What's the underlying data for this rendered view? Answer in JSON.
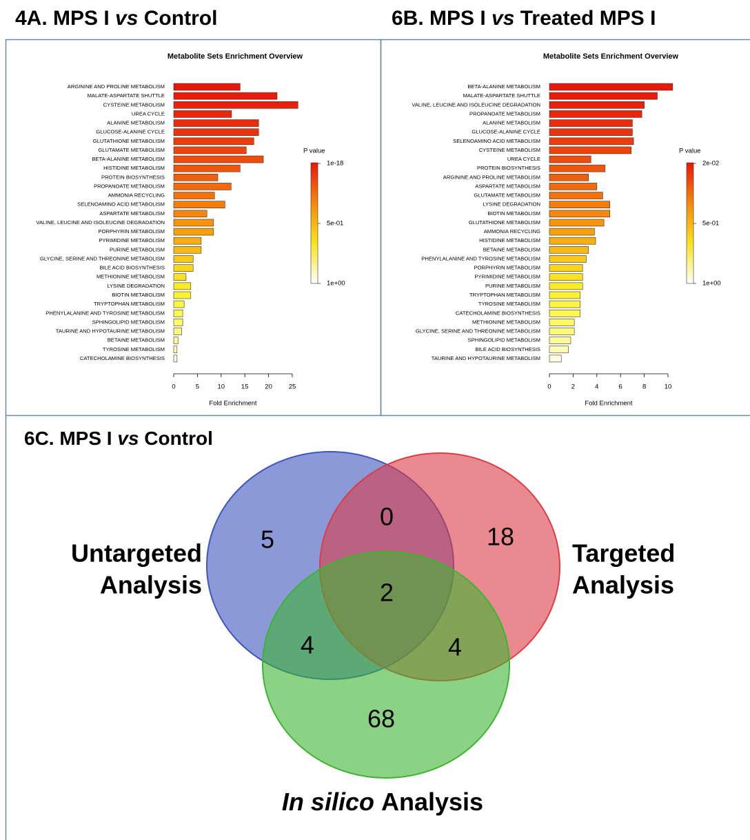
{
  "chart_data": [
    {
      "type": "bar",
      "panel_title_parts": [
        "4A. MPS I ",
        "vs",
        " Control"
      ],
      "title": "Metabolite Sets Enrichment Overview",
      "x_label": "Fold Enrichment",
      "categories": [
        "ARGININE AND PROLINE METABOLISM",
        "MALATE-ASPARTATE SHUTTLE",
        "CYSTEINE METABOLISM",
        "UREA CYCLE",
        "ALANINE METABOLISM",
        "GLUCOSE-ALANINE CYCLE",
        "GLUTATHIONE METABOLISM",
        "GLUTAMATE METABOLISM",
        "BETA-ALANINE METABOLISM",
        "HISTIDINE METABOLISM",
        "PROTEIN BIOSYNTHESIS",
        "PROPANOATE METABOLISM",
        "AMMONIA RECYCLING",
        "SELENOAMINO ACID METABOLISM",
        "ASPARTATE METABOLISM",
        "VALINE, LEUCINE AND ISOLEUCINE DEGRADATION",
        "PORPHYRIN METABOLISM",
        "PYRIMIDINE METABOLISM",
        "PURINE METABOLISM",
        "GLYCINE, SERINE AND THREONINE METABOLISM",
        "BILE ACID BIOSYNTHESIS",
        "METHIONINE METABOLISM",
        "LYSINE DEGRADATION",
        "BIOTIN METABOLISM",
        "TRYPTOPHAN METABOLISM",
        "PHENYLALANINE AND TYROSINE METABOLISM",
        "SPHINGOLIPID METABOLISM",
        "TAURINE AND HYPOTAURINE METABOLISM",
        "BETAINE METABOLISM",
        "TYROSINE METABOLISM",
        "CATECHOLAMINE BIOSYNTHESIS"
      ],
      "values": [
        14.0,
        21.8,
        26.2,
        12.2,
        17.9,
        17.9,
        16.9,
        15.3,
        18.9,
        14.0,
        9.3,
        12.1,
        8.6,
        10.8,
        7.0,
        8.4,
        8.4,
        5.8,
        5.8,
        4.1,
        4.1,
        2.6,
        3.6,
        3.6,
        2.2,
        1.9,
        1.9,
        1.7,
        0.9,
        0.7,
        0.7
      ],
      "colors": [
        "#e8170c",
        "#e81b0c",
        "#e9200c",
        "#ea260c",
        "#eb2d0c",
        "#ec340c",
        "#ed3c0c",
        "#ee440c",
        "#ef4c0c",
        "#f0550c",
        "#f15e0c",
        "#f2680c",
        "#f3720c",
        "#f47d0c",
        "#f5880c",
        "#f6940c",
        "#f7a00c",
        "#f8ad10",
        "#f9ba14",
        "#fac818",
        "#fbd51c",
        "#fce220",
        "#fcec28",
        "#fdf232",
        "#fdf540",
        "#fef750",
        "#fef964",
        "#fefa7c",
        "#fffb98",
        "#fffcb8",
        "#fffde0"
      ],
      "xlim": [
        0,
        25
      ],
      "xticks": [
        0,
        5,
        10,
        15,
        20,
        25
      ],
      "colorbar": {
        "title": "P value",
        "ticks": [
          "1e-18",
          "5e-01",
          "1e+00"
        ],
        "colors": [
          "#e8170c",
          "#f5880c",
          "#fce220",
          "#ffffff"
        ]
      }
    },
    {
      "type": "bar",
      "panel_title_parts": [
        "6B. MPS I ",
        "vs",
        " Treated MPS I"
      ],
      "title": "Metabolite Sets Enrichment Overview",
      "x_label": "Fold Enrichment",
      "categories": [
        "BETA-ALANINE METABOLISM",
        "MALATE-ASPARTATE SHUTTLE",
        "VALINE, LEUCINE AND ISOLEUCINE DEGRADATION",
        "PROPANOATE METABOLISM",
        "ALANINE METABOLISM",
        "GLUCOSE-ALANINE CYCLE",
        "SELENOAMINO ACID METABOLISM",
        "CYSTEINE METABOLISM",
        "UREA CYCLE",
        "PROTEIN BIOSYNTHESIS",
        "ARGININE AND PROLINE METABOLISM",
        "ASPARTATE METABOLISM",
        "GLUTAMATE METABOLISM",
        "LYSINE DEGRADATION",
        "BIOTIN METABOLISM",
        "GLUTATHIONE METABOLISM",
        "AMMONIA RECYCLING",
        "HISTIDINE METABOLISM",
        "BETAINE METABOLISM",
        "PHENYLALANINE AND TYROSINE METABOLISM",
        "PORPHYRIN METABOLISM",
        "PYRIMIDINE METABOLISM",
        "PURINE METABOLISM",
        "TRYPTOPHAN METABOLISM",
        "TYROSINE METABOLISM",
        "CATECHOLAMINE BIOSYNTHESIS",
        "METHIONINE METABOLISM",
        "GLYCINE, SERINE AND THREONINE METABOLISM",
        "SPHINGOLIPID METABOLISM",
        "BILE ACID BIOSYNTHESIS",
        "TAURINE AND HYPOTAURINE METABOLISM"
      ],
      "values": [
        10.4,
        9.1,
        8.0,
        7.8,
        7.0,
        7.0,
        7.1,
        6.9,
        3.5,
        4.7,
        3.3,
        4.0,
        4.5,
        5.1,
        5.1,
        4.6,
        3.8,
        3.9,
        3.3,
        3.1,
        2.8,
        2.8,
        2.8,
        2.6,
        2.6,
        2.6,
        2.1,
        2.1,
        1.8,
        1.6,
        1.0
      ],
      "colors": [
        "#e8170c",
        "#e81b0c",
        "#e9200c",
        "#ea260c",
        "#eb2d0c",
        "#ec340c",
        "#ed3c0c",
        "#ee440c",
        "#ef4c0c",
        "#f0550c",
        "#f15e0c",
        "#f2680c",
        "#f3720c",
        "#f47d0c",
        "#f5880c",
        "#f6940c",
        "#f7a00c",
        "#f8ad10",
        "#f9ba14",
        "#fac818",
        "#fbd51c",
        "#fce220",
        "#fcec28",
        "#fdf232",
        "#fdf540",
        "#fef750",
        "#fef964",
        "#fefa7c",
        "#fffb98",
        "#fffcb8",
        "#fffde0"
      ],
      "xlim": [
        0,
        10
      ],
      "xticks": [
        0,
        2,
        4,
        6,
        8,
        10
      ],
      "colorbar": {
        "title": "P value",
        "ticks": [
          "2e-02",
          "5e-01",
          "1e+00"
        ],
        "colors": [
          "#e8170c",
          "#f5880c",
          "#fce220",
          "#ffffff"
        ]
      }
    },
    {
      "type": "venn",
      "panel_title_parts": [
        "6C. MPS I ",
        "vs",
        " Control"
      ],
      "sets": [
        {
          "label_lines": [
            "Untargeted",
            "Analysis"
          ],
          "color": "#3d55c0"
        },
        {
          "label_lines": [
            "Targeted",
            "Analysis"
          ],
          "color": "#dc3c46"
        },
        {
          "label_lines": [
            "In silico",
            "Analysis"
          ],
          "color": "#3db432"
        }
      ],
      "region_values": [
        5,
        0,
        18,
        2,
        4,
        4,
        68
      ]
    }
  ]
}
